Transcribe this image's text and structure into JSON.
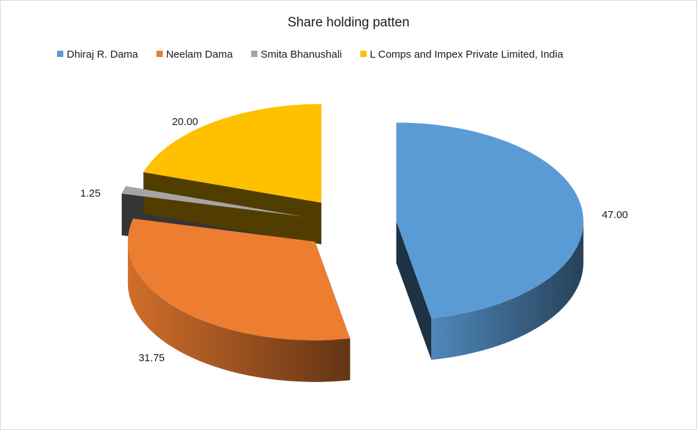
{
  "chart_data": {
    "type": "pie",
    "title": "Share holding patten",
    "legend_position": "top",
    "exploded": true,
    "three_d": true,
    "slices": [
      {
        "name": "Dhiraj R. Dama",
        "value": 47.0,
        "label": "47.00",
        "color": "#5b9bd5"
      },
      {
        "name": "Neelam Dama",
        "value": 31.75,
        "label": "31.75",
        "color": "#ed7d31"
      },
      {
        "name": "Smita Bhanushali",
        "value": 1.25,
        "label": "1.25",
        "color": "#a5a5a5"
      },
      {
        "name": "L Comps and Impex Private Limited, India",
        "value": 20.0,
        "label": "20.00",
        "color": "#ffc000"
      }
    ]
  }
}
